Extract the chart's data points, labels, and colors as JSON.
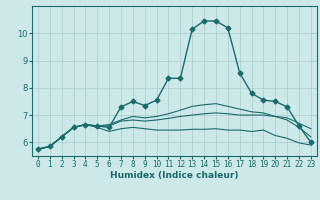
{
  "title": "",
  "xlabel": "Humidex (Indice chaleur)",
  "ylabel": "",
  "bg_color": "#cce8e8",
  "line_color": "#1a6b6b",
  "grid_color": "#aacccc",
  "x_ticks": [
    0,
    1,
    2,
    3,
    4,
    5,
    6,
    7,
    8,
    9,
    10,
    11,
    12,
    13,
    14,
    15,
    16,
    17,
    18,
    19,
    20,
    21,
    22,
    23
  ],
  "y_ticks": [
    6,
    7,
    8,
    9,
    10
  ],
  "xlim": [
    -0.5,
    23.5
  ],
  "ylim": [
    5.5,
    11.0
  ],
  "series": [
    {
      "x": [
        0,
        1,
        2,
        3,
        4,
        5,
        6,
        7,
        8,
        9,
        10,
        11,
        12,
        13,
        14,
        15,
        16,
        17,
        18,
        19,
        20,
        21,
        22,
        23
      ],
      "y": [
        5.75,
        5.85,
        6.2,
        6.55,
        6.65,
        6.6,
        6.55,
        7.3,
        7.5,
        7.35,
        7.55,
        8.35,
        8.35,
        10.15,
        10.45,
        10.45,
        10.2,
        8.55,
        7.8,
        7.55,
        7.5,
        7.3,
        6.6,
        6.0
      ],
      "marker": "D",
      "markersize": 2.5,
      "linewidth": 1.0
    },
    {
      "x": [
        0,
        1,
        2,
        3,
        4,
        5,
        6,
        7,
        8,
        9,
        10,
        11,
        12,
        13,
        14,
        15,
        16,
        17,
        18,
        19,
        20,
        21,
        22,
        23
      ],
      "y": [
        5.75,
        5.85,
        6.2,
        6.55,
        6.65,
        6.55,
        6.4,
        6.5,
        6.55,
        6.5,
        6.45,
        6.45,
        6.45,
        6.48,
        6.48,
        6.5,
        6.45,
        6.45,
        6.4,
        6.45,
        6.25,
        6.15,
        5.98,
        5.9
      ],
      "marker": null,
      "markersize": 0,
      "linewidth": 0.8
    },
    {
      "x": [
        0,
        1,
        2,
        3,
        4,
        5,
        6,
        7,
        8,
        9,
        10,
        11,
        12,
        13,
        14,
        15,
        16,
        17,
        18,
        19,
        20,
        21,
        22,
        23
      ],
      "y": [
        5.75,
        5.85,
        6.2,
        6.55,
        6.65,
        6.6,
        6.6,
        6.78,
        6.82,
        6.78,
        6.82,
        6.88,
        6.95,
        7.0,
        7.05,
        7.08,
        7.05,
        7.0,
        7.0,
        7.0,
        6.95,
        6.9,
        6.7,
        6.5
      ],
      "marker": null,
      "markersize": 0,
      "linewidth": 0.8
    },
    {
      "x": [
        0,
        1,
        2,
        3,
        4,
        5,
        6,
        7,
        8,
        9,
        10,
        11,
        12,
        13,
        14,
        15,
        16,
        17,
        18,
        19,
        20,
        21,
        22,
        23
      ],
      "y": [
        5.75,
        5.85,
        6.2,
        6.55,
        6.65,
        6.6,
        6.65,
        6.82,
        6.95,
        6.9,
        6.95,
        7.05,
        7.18,
        7.32,
        7.38,
        7.42,
        7.32,
        7.22,
        7.12,
        7.08,
        6.95,
        6.82,
        6.55,
        6.2
      ],
      "marker": null,
      "markersize": 0,
      "linewidth": 0.8
    }
  ]
}
